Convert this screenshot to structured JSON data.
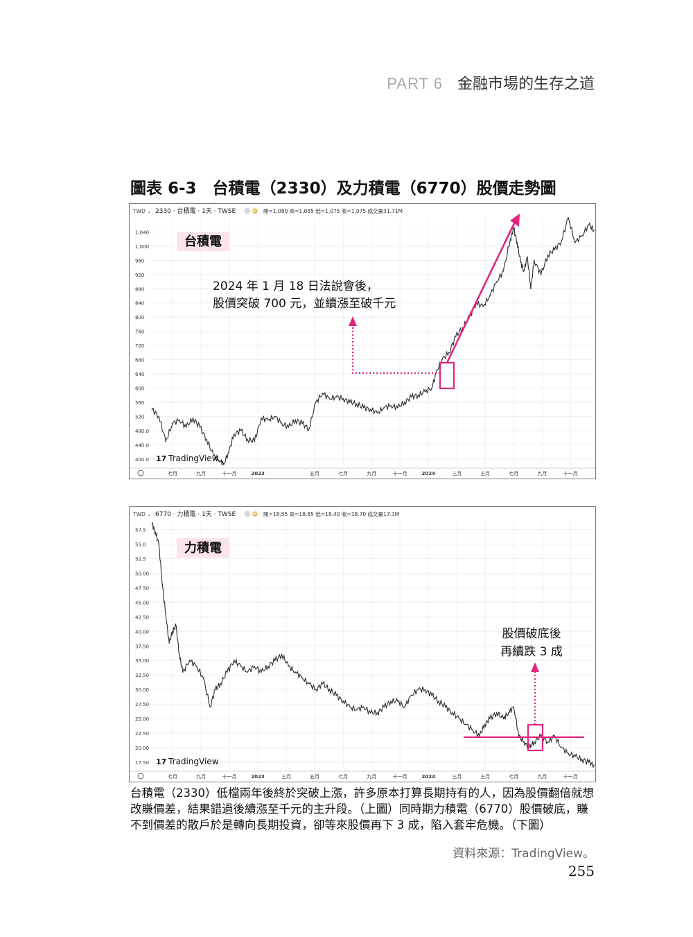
{
  "header": {
    "part": "PART 6",
    "title": "金融市場的生存之道"
  },
  "figure_title": "圖表 6-3　台積電（2330）及力積電（6770）股價走勢圖",
  "caption": "台積電（2330）低檔兩年後終於突破上漲，許多原本打算長期持有的人，因為股價翻倍就想改賺價差，結果錯過後續漲至千元的主升段。（上圖）同時期力積電（6770）股價破底，賺不到價差的散戶於是轉向長期投資，卻等來股價再下 3 成，陷入套牢危機。（下圖）",
  "source": "資料來源：TradingView。",
  "page_number": "255",
  "colors": {
    "accent": "#e0267f",
    "label_bg": "#fbe3ee",
    "line": "#2a2a2a",
    "grid": "#efefef"
  },
  "chart_data": [
    {
      "type": "line",
      "currency": "TWD",
      "symbol_line": "2330 · 台積電 · 1天 · TWSE",
      "badge": "D",
      "ohlc_text": "開=1,080 高=1,085 低=1,075 收=1,075 成交量31.71M",
      "stock_label": "台積電",
      "annotation": [
        "2024 年 1 月 18 日法說會後，",
        "股價突破 700 元，並續漲至破千元"
      ],
      "brand": "TradingView",
      "y_ticks": [
        "400.0",
        "440.0",
        "480.0",
        "520",
        "560",
        "600",
        "640",
        "680",
        "720",
        "760",
        "800",
        "840",
        "880",
        "920",
        "960",
        "1,000",
        "1,040"
      ],
      "ylim": [
        380,
        1080
      ],
      "x_ticks": [
        {
          "label": "七月",
          "x": 2022.5
        },
        {
          "label": "九月",
          "x": 2022.667
        },
        {
          "label": "十一月",
          "x": 2022.833
        },
        {
          "label": "2023",
          "x": 2023.0
        },
        {
          "label": "五月",
          "x": 2023.333
        },
        {
          "label": "七月",
          "x": 2023.5
        },
        {
          "label": "九月",
          "x": 2023.667
        },
        {
          "label": "十一月",
          "x": 2023.833
        },
        {
          "label": "2024",
          "x": 2024.0
        },
        {
          "label": "三月",
          "x": 2024.167
        },
        {
          "label": "五月",
          "x": 2024.333
        },
        {
          "label": "七月",
          "x": 2024.5
        },
        {
          "label": "九月",
          "x": 2024.667
        },
        {
          "label": "十一月",
          "x": 2024.833
        }
      ],
      "xlim": [
        2022.37,
        2024.97
      ],
      "x": [
        2022.38,
        2022.42,
        2022.46,
        2022.5,
        2022.54,
        2022.58,
        2022.62,
        2022.66,
        2022.7,
        2022.74,
        2022.78,
        2022.8,
        2022.83,
        2022.86,
        2022.9,
        2022.94,
        2022.98,
        2023.02,
        2023.06,
        2023.1,
        2023.14,
        2023.18,
        2023.22,
        2023.26,
        2023.3,
        2023.34,
        2023.38,
        2023.42,
        2023.46,
        2023.5,
        2023.54,
        2023.58,
        2023.62,
        2023.66,
        2023.7,
        2023.74,
        2023.78,
        2023.82,
        2023.86,
        2023.9,
        2023.94,
        2023.98,
        2024.02,
        2024.05,
        2024.08,
        2024.12,
        2024.16,
        2024.2,
        2024.24,
        2024.28,
        2024.32,
        2024.36,
        2024.4,
        2024.44,
        2024.48,
        2024.5,
        2024.52,
        2024.54,
        2024.56,
        2024.58,
        2024.6,
        2024.62,
        2024.66,
        2024.7,
        2024.74,
        2024.78,
        2024.82,
        2024.86,
        2024.9,
        2024.94,
        2024.97
      ],
      "y": [
        540,
        520,
        450,
        500,
        510,
        490,
        515,
        490,
        455,
        410,
        395,
        385,
        420,
        470,
        480,
        455,
        450,
        515,
        510,
        520,
        500,
        490,
        510,
        500,
        485,
        560,
        585,
        570,
        575,
        570,
        560,
        555,
        545,
        540,
        530,
        545,
        550,
        545,
        560,
        575,
        580,
        590,
        600,
        650,
        680,
        700,
        745,
        770,
        800,
        840,
        830,
        860,
        900,
        930,
        1020,
        1050,
        1010,
        955,
        930,
        970,
        880,
        960,
        920,
        975,
        990,
        1015,
        1080,
        1010,
        1030,
        1060,
        1045
      ]
    },
    {
      "type": "line",
      "currency": "TWD",
      "symbol_line": "6770 · 力積電 · 1天 · TWSE",
      "badge": "D",
      "ohlc_text": "開=18.55 高=18.85 低=18.40 收=18.70 成交量17.3M",
      "stock_label": "力積電",
      "annotation": [
        "股價破底後",
        "再續跌 3 成"
      ],
      "brand": "TradingView",
      "y_ticks": [
        "17.50",
        "20.00",
        "22.50",
        "25.00",
        "27.50",
        "30.00",
        "32.50",
        "35.00",
        "37.50",
        "40.00",
        "42.50",
        "45.00",
        "47.50",
        "50.00",
        "52.5",
        "55.0",
        "57.5"
      ],
      "ylim": [
        16.3,
        59.0
      ],
      "support_level": 21.8,
      "x_ticks": [
        {
          "label": "七月",
          "x": 2022.5
        },
        {
          "label": "九月",
          "x": 2022.667
        },
        {
          "label": "十一月",
          "x": 2022.833
        },
        {
          "label": "2023",
          "x": 2023.0
        },
        {
          "label": "三月",
          "x": 2023.167
        },
        {
          "label": "五月",
          "x": 2023.333
        },
        {
          "label": "七月",
          "x": 2023.5
        },
        {
          "label": "九月",
          "x": 2023.667
        },
        {
          "label": "十一月",
          "x": 2023.833
        },
        {
          "label": "2024",
          "x": 2024.0
        },
        {
          "label": "三月",
          "x": 2024.167
        },
        {
          "label": "五月",
          "x": 2024.333
        },
        {
          "label": "七月",
          "x": 2024.5
        },
        {
          "label": "九月",
          "x": 2024.667
        },
        {
          "label": "十一月",
          "x": 2024.833
        }
      ],
      "xlim": [
        2022.37,
        2024.97
      ],
      "x": [
        2022.38,
        2022.4,
        2022.42,
        2022.44,
        2022.46,
        2022.48,
        2022.5,
        2022.52,
        2022.54,
        2022.56,
        2022.6,
        2022.64,
        2022.68,
        2022.72,
        2022.75,
        2022.78,
        2022.82,
        2022.86,
        2022.9,
        2022.94,
        2022.98,
        2023.02,
        2023.06,
        2023.1,
        2023.14,
        2023.18,
        2023.22,
        2023.26,
        2023.3,
        2023.34,
        2023.38,
        2023.42,
        2023.46,
        2023.5,
        2023.54,
        2023.58,
        2023.62,
        2023.66,
        2023.7,
        2023.74,
        2023.78,
        2023.82,
        2023.86,
        2023.9,
        2023.94,
        2023.98,
        2024.02,
        2024.06,
        2024.1,
        2024.14,
        2024.18,
        2024.22,
        2024.26,
        2024.3,
        2024.33,
        2024.36,
        2024.4,
        2024.44,
        2024.47,
        2024.5,
        2024.53,
        2024.56,
        2024.59,
        2024.62,
        2024.66,
        2024.7,
        2024.74,
        2024.78,
        2024.82,
        2024.86,
        2024.9,
        2024.94,
        2024.97
      ],
      "y": [
        58.5,
        57,
        55,
        48,
        43,
        38,
        40,
        41,
        36,
        33,
        35,
        34,
        32,
        27,
        30,
        31,
        33,
        35,
        34,
        33,
        34,
        33,
        34,
        35,
        36,
        34,
        33,
        32,
        31,
        30,
        31,
        30,
        29,
        28,
        27,
        26.5,
        27,
        26,
        26,
        27,
        28,
        28,
        27,
        29,
        30,
        30,
        29,
        28,
        27,
        26,
        25,
        24,
        23,
        22,
        24,
        25,
        26,
        25,
        26,
        27,
        22,
        21,
        20,
        21,
        22,
        21,
        22,
        20,
        19,
        18.5,
        18,
        17.5,
        17
      ]
    }
  ]
}
